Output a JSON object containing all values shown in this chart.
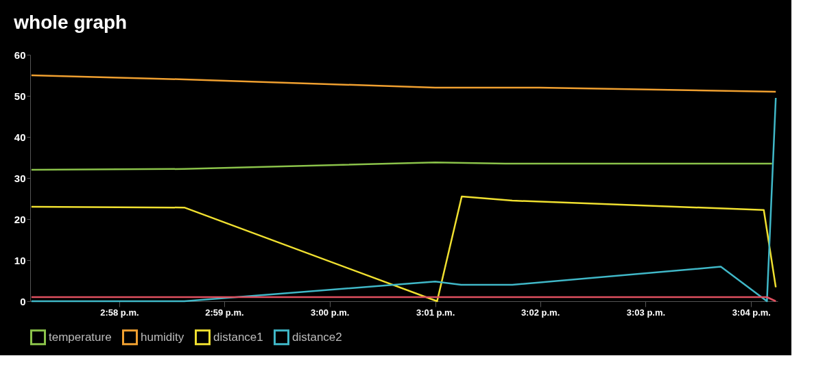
{
  "chart_data": {
    "type": "line",
    "title": "whole graph",
    "xlim": [
      14.9526,
      15.0709
    ],
    "xticks": [
      {
        "value": 14.9667,
        "label": "2:58 p.m."
      },
      {
        "value": 14.9833,
        "label": "2:59 p.m."
      },
      {
        "value": 15.0,
        "label": "3:00 p.m."
      },
      {
        "value": 15.0167,
        "label": "3:01 p.m."
      },
      {
        "value": 15.0333,
        "label": "3:02 p.m."
      },
      {
        "value": 15.05,
        "label": "3:03 p.m."
      },
      {
        "value": 15.0667,
        "label": "3:04 p.m."
      }
    ],
    "ylim": [
      0,
      60
    ],
    "yticks": [
      0,
      10,
      20,
      30,
      40,
      50,
      60
    ],
    "grid": false,
    "legend": "bottom",
    "marker": "none",
    "line_style": "solid",
    "series": [
      {
        "name": "temperature",
        "color": "#8bc34a",
        "x": [
          14.9528,
          14.977,
          15.0167,
          15.0278,
          15.07
        ],
        "values": [
          32,
          32.2,
          33.8,
          33.5,
          33.5
        ]
      },
      {
        "name": "humidity",
        "color": "#f0a030",
        "x": [
          14.9528,
          14.977,
          15.0167,
          15.0332,
          15.0706
        ],
        "values": [
          55,
          54,
          52,
          52,
          51
        ]
      },
      {
        "name": "distance1",
        "color": "#f0e030",
        "x": [
          14.9528,
          14.977,
          15.017,
          15.0209,
          15.0289,
          15.0687,
          15.0706
        ],
        "values": [
          23,
          22.8,
          0,
          25.5,
          24.5,
          22.2,
          3.4
        ]
      },
      {
        "name": "distance2",
        "color": "#40b8c8",
        "x": [
          14.9528,
          14.977,
          15.0167,
          15.0208,
          15.0289,
          15.0619,
          15.0692,
          15.0706
        ],
        "values": [
          0,
          0,
          4.8,
          4.0,
          4.0,
          8.4,
          0,
          49.5
        ]
      },
      {
        "color": "#e05060",
        "x": [
          14.9528,
          15.0692,
          15.0706
        ],
        "values": [
          1,
          1,
          0
        ]
      }
    ]
  }
}
